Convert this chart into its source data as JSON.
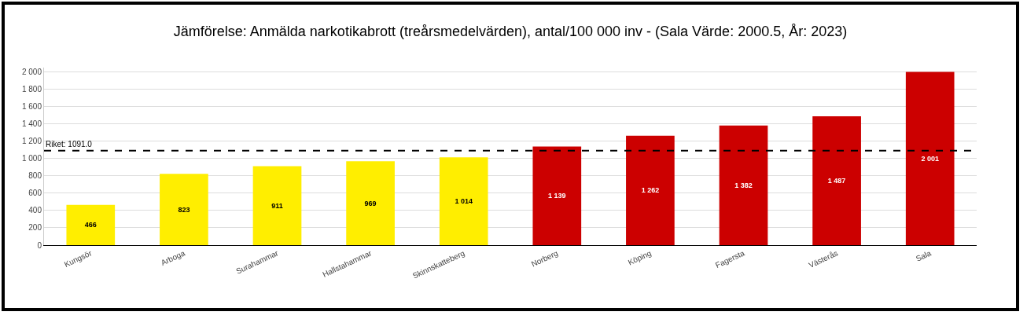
{
  "chart_data": {
    "type": "bar",
    "title": "Jämförelse: Anmälda narkotikabrott (treårsmedelvärden), antal/100 000 inv - (Sala Värde: 2000.5, År: 2023)",
    "categories": [
      "Kungsör",
      "Arboga",
      "Surahammar",
      "Hallstahammar",
      "Skinnskatteberg",
      "Norberg",
      "Köping",
      "Fagersta",
      "Västerås",
      "Sala"
    ],
    "values": [
      466,
      823,
      911,
      969,
      1014,
      1139,
      1262,
      1382,
      1487,
      2001
    ],
    "value_labels": [
      "466",
      "823",
      "911",
      "969",
      "1 014",
      "1 139",
      "1 262",
      "1 382",
      "1 487",
      "2 001"
    ],
    "colors": [
      "#ffee00",
      "#ffee00",
      "#ffee00",
      "#ffee00",
      "#ffee00",
      "#cc0000",
      "#cc0000",
      "#cc0000",
      "#cc0000",
      "#cc0000"
    ],
    "ylim": [
      0,
      2050
    ],
    "yticks": [
      0,
      {
        "value": 200,
        "label": "200"
      },
      {
        "value": 400,
        "label": "400"
      },
      {
        "value": 600,
        "label": "600"
      },
      {
        "value": 800,
        "label": "800"
      },
      {
        "value": 1000,
        "label": "1 000"
      },
      {
        "value": 1200,
        "label": "1 200"
      },
      {
        "value": 1400,
        "label": "1 400"
      },
      {
        "value": 1600,
        "label": "1 600"
      },
      {
        "value": 1800,
        "label": "1 800"
      },
      {
        "value": 2000,
        "label": "2 000"
      }
    ],
    "grid": "y",
    "ref_lines": [
      {
        "axis": "y",
        "value": 1091.0,
        "label": "Riket: 1091.0",
        "color": "#000000",
        "line_style": "dashed"
      }
    ]
  }
}
